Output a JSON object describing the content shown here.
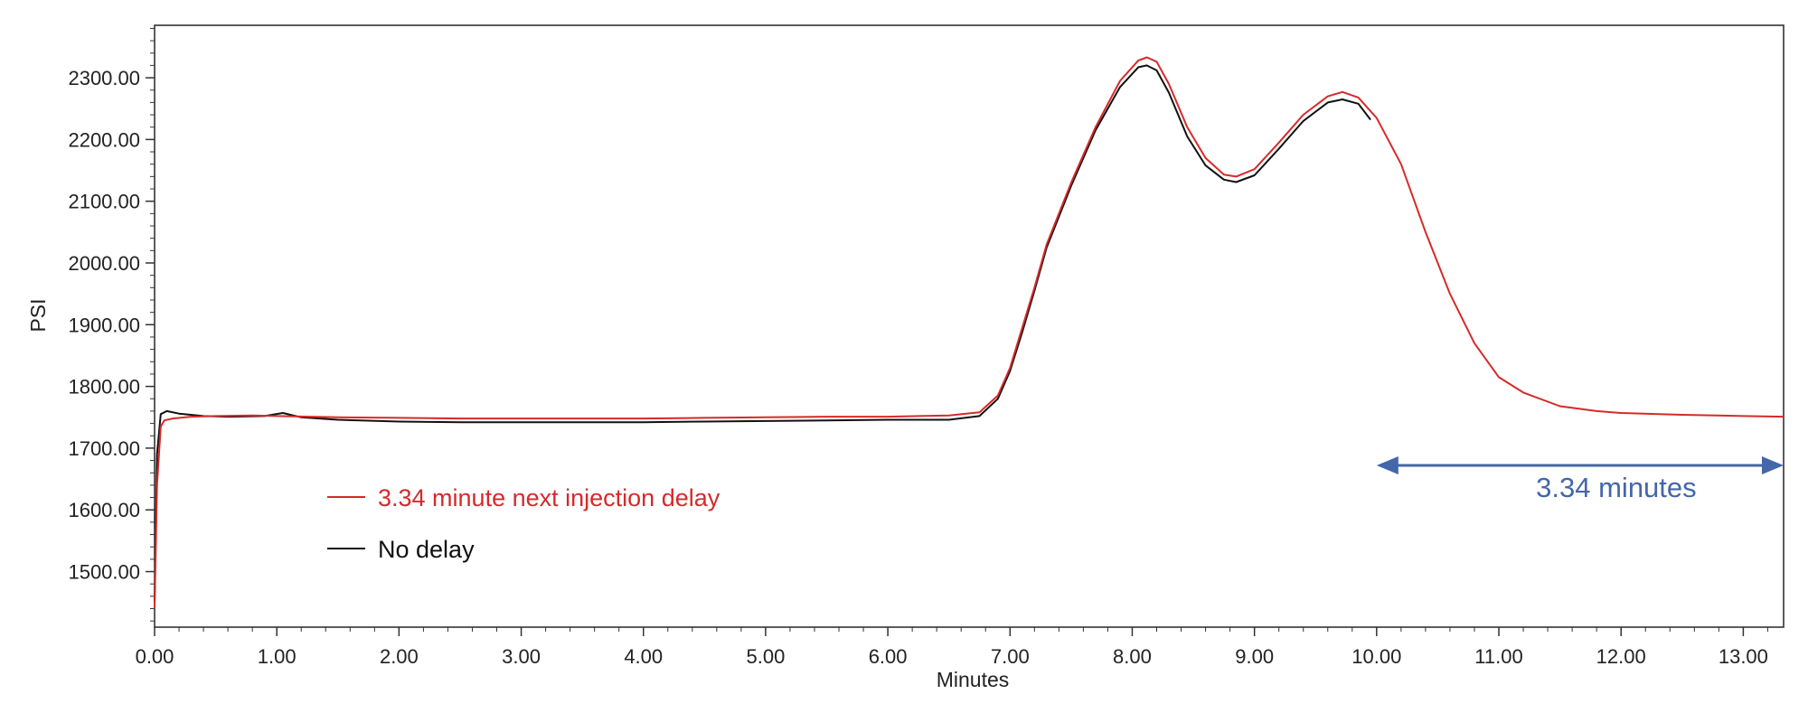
{
  "chart_data": {
    "type": "line",
    "title": "",
    "xlabel": "Minutes",
    "ylabel": "PSI",
    "xlim": [
      0,
      13.33
    ],
    "ylim": [
      1410,
      2385
    ],
    "grid": false,
    "legend_placement": "left, lower area inside plot",
    "x_ticks": [
      "0.00",
      "1.00",
      "2.00",
      "3.00",
      "4.00",
      "5.00",
      "6.00",
      "7.00",
      "8.00",
      "9.00",
      "10.00",
      "11.00",
      "12.00",
      "13.00"
    ],
    "y_ticks": [
      "1500.00",
      "1600.00",
      "1700.00",
      "1800.00",
      "1900.00",
      "2000.00",
      "2100.00",
      "2200.00",
      "2300.00"
    ],
    "series": [
      {
        "name": "3.34 minute next injection delay",
        "color": "#d62a2a",
        "points": [
          [
            0.0,
            1440
          ],
          [
            0.02,
            1640
          ],
          [
            0.05,
            1735
          ],
          [
            0.08,
            1745
          ],
          [
            0.15,
            1748
          ],
          [
            0.3,
            1751
          ],
          [
            0.5,
            1752
          ],
          [
            0.8,
            1753
          ],
          [
            1.0,
            1752
          ],
          [
            1.5,
            1750
          ],
          [
            2.0,
            1749
          ],
          [
            2.5,
            1748
          ],
          [
            3.0,
            1748
          ],
          [
            3.5,
            1748
          ],
          [
            4.0,
            1748
          ],
          [
            4.5,
            1749
          ],
          [
            5.0,
            1750
          ],
          [
            5.5,
            1751
          ],
          [
            6.0,
            1751
          ],
          [
            6.5,
            1753
          ],
          [
            6.75,
            1758
          ],
          [
            6.9,
            1785
          ],
          [
            7.0,
            1830
          ],
          [
            7.1,
            1895
          ],
          [
            7.2,
            1960
          ],
          [
            7.3,
            2030
          ],
          [
            7.5,
            2130
          ],
          [
            7.7,
            2220
          ],
          [
            7.9,
            2295
          ],
          [
            8.05,
            2328
          ],
          [
            8.12,
            2333
          ],
          [
            8.2,
            2326
          ],
          [
            8.3,
            2290
          ],
          [
            8.45,
            2220
          ],
          [
            8.6,
            2170
          ],
          [
            8.75,
            2143
          ],
          [
            8.85,
            2140
          ],
          [
            9.0,
            2152
          ],
          [
            9.2,
            2195
          ],
          [
            9.4,
            2240
          ],
          [
            9.6,
            2270
          ],
          [
            9.72,
            2277
          ],
          [
            9.85,
            2268
          ],
          [
            10.0,
            2235
          ],
          [
            10.2,
            2160
          ],
          [
            10.4,
            2050
          ],
          [
            10.6,
            1950
          ],
          [
            10.8,
            1870
          ],
          [
            11.0,
            1815
          ],
          [
            11.2,
            1790
          ],
          [
            11.5,
            1768
          ],
          [
            11.8,
            1760
          ],
          [
            12.0,
            1757
          ],
          [
            12.5,
            1754
          ],
          [
            13.0,
            1752
          ],
          [
            13.33,
            1751
          ]
        ]
      },
      {
        "name": "No delay",
        "color": "#111111",
        "points": [
          [
            0.0,
            1452
          ],
          [
            0.02,
            1690
          ],
          [
            0.05,
            1755
          ],
          [
            0.1,
            1760
          ],
          [
            0.2,
            1756
          ],
          [
            0.4,
            1752
          ],
          [
            0.6,
            1751
          ],
          [
            0.9,
            1752
          ],
          [
            1.05,
            1757
          ],
          [
            1.2,
            1750
          ],
          [
            1.5,
            1746
          ],
          [
            2.0,
            1743
          ],
          [
            2.5,
            1742
          ],
          [
            3.0,
            1742
          ],
          [
            3.5,
            1742
          ],
          [
            4.0,
            1742
          ],
          [
            4.5,
            1743
          ],
          [
            5.0,
            1744
          ],
          [
            5.5,
            1745
          ],
          [
            6.0,
            1746
          ],
          [
            6.5,
            1746
          ],
          [
            6.75,
            1752
          ],
          [
            6.9,
            1780
          ],
          [
            7.0,
            1825
          ],
          [
            7.1,
            1888
          ],
          [
            7.2,
            1955
          ],
          [
            7.3,
            2025
          ],
          [
            7.5,
            2125
          ],
          [
            7.7,
            2215
          ],
          [
            7.9,
            2285
          ],
          [
            8.05,
            2317
          ],
          [
            8.12,
            2320
          ],
          [
            8.2,
            2312
          ],
          [
            8.3,
            2276
          ],
          [
            8.45,
            2205
          ],
          [
            8.6,
            2158
          ],
          [
            8.75,
            2135
          ],
          [
            8.85,
            2131
          ],
          [
            9.0,
            2142
          ],
          [
            9.2,
            2185
          ],
          [
            9.4,
            2230
          ],
          [
            9.6,
            2260
          ],
          [
            9.72,
            2265
          ],
          [
            9.85,
            2258
          ],
          [
            9.95,
            2232
          ]
        ]
      }
    ],
    "annotation": {
      "label": "3.34 minutes",
      "color": "#4466aa",
      "x_start": 10.0,
      "x_end": 13.34,
      "y": 1672
    }
  }
}
